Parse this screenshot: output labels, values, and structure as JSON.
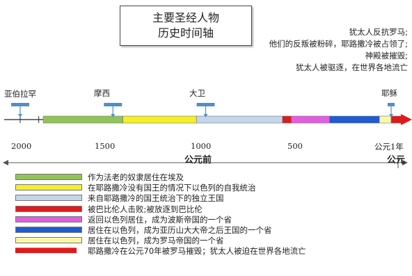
{
  "title": {
    "line1": "主要圣经人物",
    "line2": "历史时间轴"
  },
  "note": [
    "犹太人反抗罗马;",
    "他们的反叛被粉碎，耶路撒冷被占领了;",
    "神殿被摧毁;",
    "犹太人被驱逐，在世界各地流亡"
  ],
  "people": [
    {
      "name": "亚伯拉罕",
      "year": 2000
    },
    {
      "name": "摩西",
      "year": 1500
    },
    {
      "name": "大卫",
      "year": 1000
    },
    {
      "name": "耶稣",
      "year": 0
    }
  ],
  "axis": {
    "ticks": [
      "2000",
      "1500",
      "1000",
      "500",
      "公元1年"
    ],
    "bc_label": "公元前",
    "ad_label": "公元"
  },
  "periods": [
    {
      "from": 1876,
      "to": 1446,
      "color": "#92c35a",
      "label": "作为法老的奴隶居住在埃及"
    },
    {
      "from": 1446,
      "to": 1050,
      "color": "#f5ee2a",
      "label": "在耶路撒冷没有国王的情况下以色列的自我统治"
    },
    {
      "from": 1050,
      "to": 586,
      "color": "#c3d6ea",
      "label": "来自耶路撒冷的国王统治下的独立王国"
    },
    {
      "from": 586,
      "to": 538,
      "color": "#e01a1a",
      "label": "被巴比伦人击败;被放逐到巴比伦"
    },
    {
      "from": 538,
      "to": 332,
      "color": "#e25ee0",
      "label": "返回以色列居住，成为波斯帝国的一个省"
    },
    {
      "from": 332,
      "to": 63,
      "color": "#1f5bd1",
      "label": "居住在以色列，成为亚历山大大帝之后王国的一个省"
    },
    {
      "from": 63,
      "to": 0,
      "color": "#fbf7a8",
      "label": "居住在以色列，成为罗马帝国的一个省"
    },
    {
      "from": 0,
      "to": -70,
      "color": "#e01a1a",
      "label": "耶路撒冷在公元70年被罗马摧毁；犹太人被迫在世界各地流亡"
    }
  ]
}
